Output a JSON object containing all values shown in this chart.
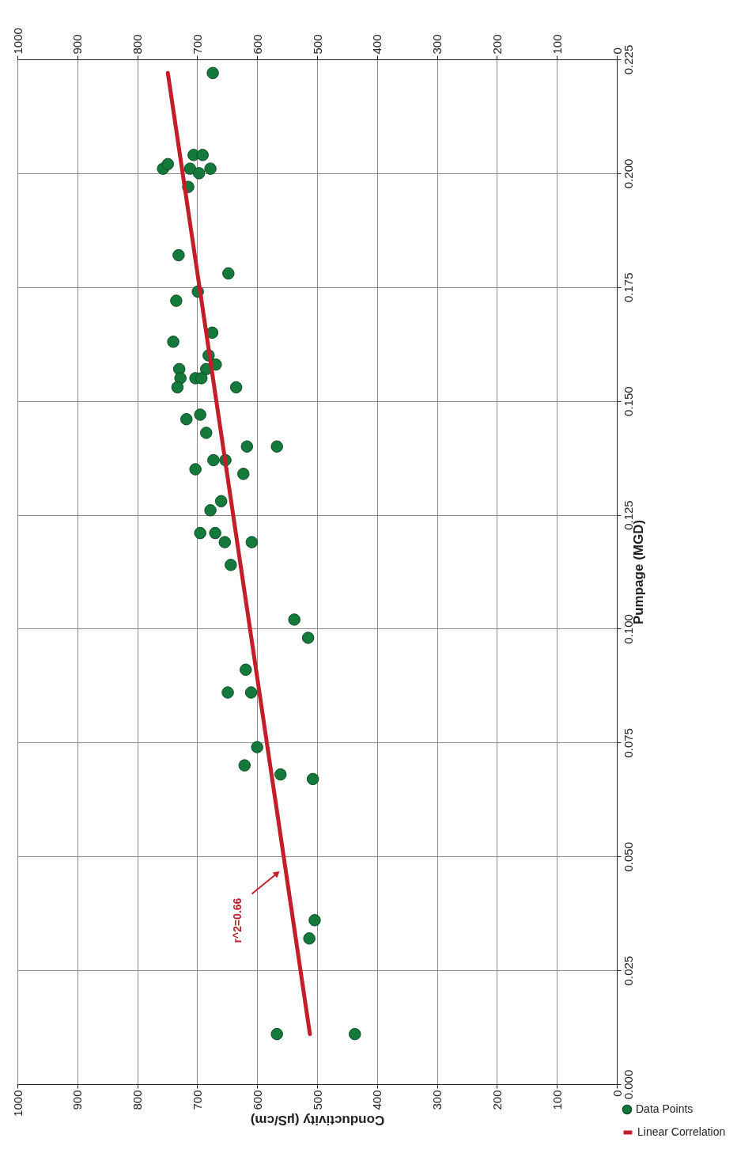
{
  "chart_data": {
    "type": "scatter",
    "xlabel": "Conductivity (µS/cm)",
    "ylabel": "Pumpage (MGD)",
    "xlim": [
      1000,
      0
    ],
    "xticks": [
      1000,
      900,
      800,
      700,
      600,
      500,
      400,
      300,
      200,
      100,
      0
    ],
    "x2lim": [
      1000,
      0
    ],
    "x2ticks": [
      1000,
      900,
      800,
      700,
      600,
      500,
      400,
      300,
      200,
      100,
      0
    ],
    "ylim": [
      0,
      0.225
    ],
    "yticks": [
      {
        "value": 0,
        "label": "0.000"
      },
      0.025,
      {
        "value": 0.05,
        "label": "0.050"
      },
      0.075,
      {
        "value": 0.1,
        "label": "0.100"
      },
      0.125,
      {
        "value": 0.15,
        "label": "0.150"
      },
      0.175,
      {
        "value": 0.2,
        "label": "0.200"
      },
      0.225
    ],
    "grid": true,
    "legend": "bottom right",
    "annotations": [
      {
        "text": "r^2=0.66",
        "x": 560,
        "y": 0.047
      }
    ],
    "series": [
      {
        "name": "Data Points",
        "color": "#137a3b",
        "marker": "circle",
        "values": [
          0.222,
          0.201,
          0.202,
          0.204,
          0.204,
          0.201,
          0.2,
          0.201,
          0.197,
          0.182,
          0.178,
          0.174,
          0.172,
          0.165,
          0.163,
          0.16,
          0.157,
          0.158,
          0.157,
          0.155,
          0.155,
          0.155,
          0.153,
          0.153,
          0.147,
          0.146,
          0.143,
          0.14,
          0.14,
          0.137,
          0.137,
          0.135,
          0.134,
          0.128,
          0.126,
          0.121,
          0.121,
          0.119,
          0.119,
          0.114,
          0.102,
          0.098,
          0.091,
          0.086,
          0.086,
          0.074,
          0.07,
          0.068,
          0.067,
          0.036,
          0.032,
          0.011,
          0.011
        ],
        "x": [
          674,
          757,
          749,
          706,
          691,
          712,
          697,
          678,
          715,
          731,
          648,
          699,
          735,
          675,
          740,
          681,
          730,
          669,
          685,
          728,
          703,
          693,
          733,
          635,
          695,
          718,
          685,
          617,
          567,
          673,
          653,
          703,
          623,
          660,
          678,
          695,
          670,
          654,
          609,
          644,
          538,
          515,
          619,
          649,
          610,
          600,
          621,
          561,
          507,
          504,
          513,
          567,
          437
        ]
      },
      {
        "name": "Linear Correlation",
        "type": "line",
        "color": "#c41e2a",
        "line_style": "solid",
        "x": [
          512,
          749
        ],
        "values": [
          0.011,
          0.222
        ]
      }
    ]
  }
}
